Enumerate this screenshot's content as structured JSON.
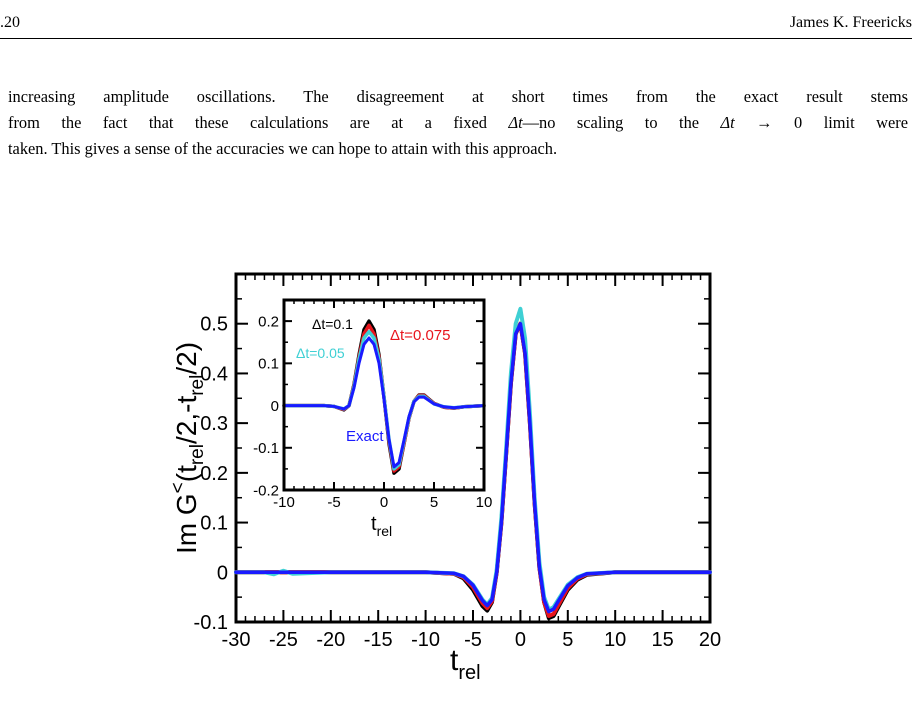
{
  "header": {
    "page_number": ".20",
    "author": "James K. Freericks"
  },
  "paragraph": {
    "line1": "increasing amplitude oscillations. The disagreement at short times from the exact result stems",
    "line2_a": "from the fact that these calculations are at a fixed ",
    "line2_dt": "Δt",
    "line2_b": "—no scaling to the ",
    "line2_dt2": "Δt",
    "line2_arrow": " → 0 ",
    "line2_c": "limit were",
    "line3": "taken. This gives a sense of the accuracies we can hope to attain with this approach."
  },
  "chart_data": [
    {
      "type": "line",
      "title": "",
      "xlabel": "t",
      "xlabel_sub": "rel",
      "ylabel": "Im G<(trel/2,-trel/2)",
      "ylabel_parts": [
        "Im G",
        "<",
        "(t",
        "rel",
        "/2,-t",
        "rel",
        "/2)"
      ],
      "xlim": [
        -30,
        20
      ],
      "ylim": [
        -0.1,
        0.6
      ],
      "x_ticks": [
        -30,
        -25,
        -20,
        -15,
        -10,
        -5,
        0,
        5,
        10,
        15,
        20
      ],
      "x_tick_labels": [
        "-30",
        "-25",
        "-20",
        "-15",
        "-10",
        "-5",
        "0",
        "5",
        "10",
        "15",
        "20"
      ],
      "y_ticks": [
        -0.1,
        0,
        0.1,
        0.2,
        0.3,
        0.4,
        0.5
      ],
      "y_tick_labels": [
        "-0.1",
        "0",
        "0.1",
        "0.2",
        "0.3",
        "0.4",
        "0.5"
      ],
      "series": [
        {
          "name": "Δt=0.1",
          "color": "#000000",
          "x": [
            -30,
            -20,
            -10,
            -7,
            -6,
            -5,
            -4,
            -3.5,
            -3,
            -2.5,
            -2,
            -1.5,
            -1,
            -0.5,
            0,
            0.5,
            1,
            1.5,
            2,
            2.5,
            3,
            3.5,
            4,
            5,
            6,
            7,
            10,
            20
          ],
          "y": [
            0,
            0,
            0,
            -0.003,
            -0.012,
            -0.035,
            -0.068,
            -0.077,
            -0.06,
            0.0,
            0.1,
            0.24,
            0.38,
            0.48,
            0.5,
            0.44,
            0.3,
            0.14,
            0.01,
            -0.06,
            -0.092,
            -0.088,
            -0.07,
            -0.035,
            -0.015,
            -0.005,
            0,
            0
          ]
        },
        {
          "name": "Δt=0.075",
          "color": "#e8141c",
          "x": [
            -30,
            -20,
            -10,
            -7,
            -6,
            -5,
            -4,
            -3.5,
            -3,
            -2.5,
            -2,
            -1.5,
            -1,
            -0.5,
            0,
            0.5,
            1,
            1.5,
            2,
            2.5,
            3,
            3.5,
            4,
            5,
            6,
            7,
            10,
            20
          ],
          "y": [
            0,
            0,
            0,
            -0.003,
            -0.01,
            -0.03,
            -0.062,
            -0.072,
            -0.058,
            0.0,
            0.1,
            0.24,
            0.38,
            0.48,
            0.5,
            0.44,
            0.3,
            0.14,
            0.01,
            -0.06,
            -0.088,
            -0.084,
            -0.066,
            -0.032,
            -0.013,
            -0.004,
            0,
            0
          ]
        },
        {
          "name": "Δt=0.05",
          "color": "#3fd0d4",
          "x": [
            -30,
            -27,
            -26,
            -25,
            -24,
            -20,
            -10,
            -7,
            -6,
            -5,
            -4,
            -3.5,
            -3,
            -2.5,
            -2,
            -1.5,
            -1,
            -0.5,
            0,
            0.5,
            1,
            1.5,
            2,
            2.5,
            3,
            3.5,
            4,
            5,
            6,
            7,
            10,
            20
          ],
          "y": [
            0,
            0,
            -0.004,
            0.003,
            -0.003,
            0,
            0,
            -0.002,
            -0.008,
            -0.025,
            -0.055,
            -0.065,
            -0.052,
            0.005,
            0.11,
            0.25,
            0.4,
            0.5,
            0.53,
            0.47,
            0.32,
            0.15,
            0.02,
            -0.05,
            -0.075,
            -0.07,
            -0.055,
            -0.025,
            -0.01,
            -0.003,
            0,
            0
          ]
        },
        {
          "name": "Exact",
          "color": "#1a1aff",
          "x": [
            -30,
            -20,
            -10,
            -7,
            -6,
            -5,
            -4,
            -3.5,
            -3,
            -2.5,
            -2,
            -1.5,
            -1,
            -0.5,
            0,
            0.5,
            1,
            1.5,
            2,
            2.5,
            3,
            3.5,
            4,
            5,
            6,
            7,
            10,
            20
          ],
          "y": [
            0,
            0,
            0,
            -0.002,
            -0.008,
            -0.026,
            -0.057,
            -0.067,
            -0.055,
            0.0,
            0.1,
            0.24,
            0.38,
            0.48,
            0.5,
            0.44,
            0.3,
            0.14,
            0.01,
            -0.055,
            -0.079,
            -0.074,
            -0.058,
            -0.027,
            -0.011,
            -0.003,
            0,
            0
          ]
        }
      ]
    },
    {
      "type": "line",
      "title": "",
      "xlabel": "t",
      "xlabel_sub": "rel",
      "ylabel": "",
      "xlim": [
        -10,
        10
      ],
      "ylim": [
        -0.2,
        0.25
      ],
      "x_ticks": [
        -10,
        -5,
        0,
        5,
        10
      ],
      "x_tick_labels": [
        "-10",
        "-5",
        "0",
        "5",
        "10"
      ],
      "y_ticks": [
        -0.2,
        -0.1,
        0,
        0.1,
        0.2
      ],
      "y_tick_labels": [
        "-0.2",
        "-0.1",
        "0",
        "0.1",
        "0.2"
      ],
      "annotations": [
        {
          "text": "Δt=0.1",
          "color": "#000000"
        },
        {
          "text": "Δt=0.075",
          "color": "#e8141c"
        },
        {
          "text": "Δt=0.05",
          "color": "#3fd0d4"
        },
        {
          "text": "Exact",
          "color": "#1a1aff"
        }
      ],
      "series": [
        {
          "name": "Δt=0.1",
          "color": "#000000",
          "x": [
            -10,
            -6,
            -5,
            -4.5,
            -4,
            -3.5,
            -3,
            -2.5,
            -2,
            -1.5,
            -1,
            -0.5,
            0,
            0.5,
            1,
            1.5,
            2,
            2.5,
            3,
            3.5,
            4,
            4.5,
            5,
            6,
            7,
            8,
            10
          ],
          "y": [
            0,
            0,
            -0.002,
            -0.006,
            -0.01,
            0.0,
            0.05,
            0.12,
            0.18,
            0.2,
            0.18,
            0.12,
            0.02,
            -0.09,
            -0.16,
            -0.15,
            -0.09,
            -0.03,
            0.01,
            0.025,
            0.025,
            0.015,
            0.005,
            -0.004,
            -0.006,
            -0.003,
            0
          ]
        },
        {
          "name": "Δt=0.075",
          "color": "#e8141c",
          "x": [
            -10,
            -6,
            -5,
            -4.5,
            -4,
            -3.5,
            -3,
            -2.5,
            -2,
            -1.5,
            -1,
            -0.5,
            0,
            0.5,
            1,
            1.5,
            2,
            2.5,
            3,
            3.5,
            4,
            4.5,
            5,
            6,
            7,
            8,
            10
          ],
          "y": [
            0,
            0,
            -0.002,
            -0.006,
            -0.009,
            0.0,
            0.048,
            0.115,
            0.17,
            0.19,
            0.17,
            0.115,
            0.02,
            -0.085,
            -0.155,
            -0.145,
            -0.09,
            -0.03,
            0.01,
            0.024,
            0.024,
            0.014,
            0.005,
            -0.004,
            -0.006,
            -0.003,
            0
          ]
        },
        {
          "name": "Δt=0.05",
          "color": "#3fd0d4",
          "x": [
            -10,
            -6,
            -5,
            -4.5,
            -4,
            -3.5,
            -3,
            -2.5,
            -2,
            -1.5,
            -1,
            -0.5,
            0,
            0.5,
            1,
            1.5,
            2,
            2.5,
            3,
            3.5,
            4,
            4.5,
            5,
            6,
            7,
            8,
            10
          ],
          "y": [
            0,
            0,
            -0.002,
            -0.005,
            -0.008,
            0.0,
            0.045,
            0.11,
            0.16,
            0.175,
            0.16,
            0.11,
            0.02,
            -0.08,
            -0.15,
            -0.14,
            -0.085,
            -0.028,
            0.01,
            0.022,
            0.022,
            0.013,
            0.004,
            -0.003,
            -0.005,
            -0.003,
            0
          ]
        },
        {
          "name": "Exact",
          "color": "#1a1aff",
          "x": [
            -10,
            -6,
            -5,
            -4.5,
            -4,
            -3.5,
            -3,
            -2.5,
            -2,
            -1.5,
            -1,
            -0.5,
            0,
            0.5,
            1,
            1.5,
            2,
            2.5,
            3,
            3.5,
            4,
            4.5,
            5,
            6,
            7,
            8,
            10
          ],
          "y": [
            0,
            0,
            -0.002,
            -0.005,
            -0.008,
            0.0,
            0.042,
            0.1,
            0.145,
            0.16,
            0.145,
            0.1,
            0.015,
            -0.08,
            -0.145,
            -0.135,
            -0.082,
            -0.026,
            0.009,
            0.02,
            0.02,
            0.012,
            0.004,
            -0.003,
            -0.005,
            -0.003,
            0
          ]
        }
      ]
    }
  ]
}
